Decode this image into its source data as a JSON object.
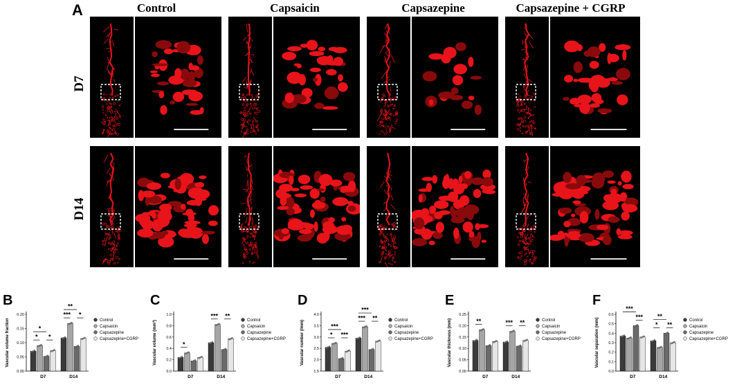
{
  "panel_a": {
    "letter": "A",
    "columns": [
      "Control",
      "Capsaicin",
      "Capsazepine",
      "Capsazepine + CGRP"
    ],
    "rows": [
      "D7",
      "D14"
    ]
  },
  "colors": {
    "vessel": "#e8141a",
    "vessel_dark": "#8a0a0c",
    "background": "#000000",
    "bar_control": "#3a3a3a",
    "bar_capsaicin": "#a6a6a6",
    "bar_capsazepine": "#6a6a6a",
    "bar_capsazepine_cgrp": "#e6e6e6"
  },
  "legend": [
    "Control",
    "Capsaicin",
    "Capsazepine",
    "Capsazepine+CGRP"
  ],
  "chart_data": [
    {
      "panel": "B",
      "type": "bar",
      "categories": [
        "D7",
        "D14"
      ],
      "ylabel": "Vascular volume fraction",
      "ylim": [
        0,
        0.2
      ],
      "yticks": [
        "0.00",
        "0.05",
        "0.10",
        "0.15",
        "0.20"
      ],
      "ytick_values": [
        0,
        0.05,
        0.1,
        0.15,
        0.2
      ],
      "series": [
        {
          "name": "Control",
          "values": [
            0.07,
            0.117
          ]
        },
        {
          "name": "Capsaicin",
          "values": [
            0.09,
            0.168
          ]
        },
        {
          "name": "Capsazepine",
          "values": [
            0.052,
            0.087
          ]
        },
        {
          "name": "Capsazepine+CGRP",
          "values": [
            0.072,
            0.115
          ]
        }
      ],
      "significance": [
        {
          "group": 0,
          "from": 0,
          "to": 2,
          "level": 1,
          "label": "*"
        },
        {
          "group": 0,
          "from": 0,
          "to": 1,
          "level": 0,
          "label": "*"
        },
        {
          "group": 0,
          "from": 2,
          "to": 3,
          "level": 0,
          "label": "*"
        },
        {
          "group": 1,
          "from": 0,
          "to": 2,
          "level": 1,
          "label": "**"
        },
        {
          "group": 1,
          "from": 0,
          "to": 1,
          "level": 0,
          "label": "***"
        },
        {
          "group": 1,
          "from": 2,
          "to": 3,
          "level": 0,
          "label": "*"
        }
      ]
    },
    {
      "panel": "C",
      "type": "bar",
      "categories": [
        "D7",
        "D14"
      ],
      "ylabel": "Vascular volume (mm³)",
      "ylim": [
        0,
        1.0
      ],
      "yticks": [
        "0.0",
        "0.2",
        "0.4",
        "0.6",
        "0.8",
        "1.0"
      ],
      "ytick_values": [
        0,
        0.2,
        0.4,
        0.6,
        0.8,
        1.0
      ],
      "series": [
        {
          "name": "Control",
          "values": [
            0.24,
            0.5
          ]
        },
        {
          "name": "Capsaicin",
          "values": [
            0.32,
            0.82
          ]
        },
        {
          "name": "Capsazepine",
          "values": [
            0.18,
            0.38
          ]
        },
        {
          "name": "Capsazepine+CGRP",
          "values": [
            0.24,
            0.57
          ]
        }
      ],
      "significance": [
        {
          "group": 0,
          "from": 0,
          "to": 1,
          "level": 0,
          "label": "*"
        },
        {
          "group": 1,
          "from": 0,
          "to": 1,
          "level": 0,
          "label": "***"
        },
        {
          "group": 1,
          "from": 2,
          "to": 3,
          "level": 0,
          "label": "**"
        }
      ]
    },
    {
      "panel": "D",
      "type": "bar",
      "categories": [
        "D7",
        "D14"
      ],
      "ylabel": "Vascular number (/mm)",
      "ylim": [
        1.5,
        4.0
      ],
      "yticks": [
        "1.5",
        "2.0",
        "2.5",
        "3.0",
        "3.5",
        "4.0"
      ],
      "ytick_values": [
        1.5,
        2.0,
        2.5,
        3.0,
        3.5,
        4.0
      ],
      "series": [
        {
          "name": "Control",
          "values": [
            2.55,
            2.95
          ]
        },
        {
          "name": "Capsaicin",
          "values": [
            2.72,
            3.45
          ]
        },
        {
          "name": "Capsazepine",
          "values": [
            2.05,
            2.45
          ]
        },
        {
          "name": "Capsazepine+CGRP",
          "values": [
            2.38,
            2.82
          ]
        }
      ],
      "significance": [
        {
          "group": 0,
          "from": 0,
          "to": 2,
          "level": 1,
          "label": "***"
        },
        {
          "group": 0,
          "from": 0,
          "to": 1,
          "level": 0,
          "label": "*"
        },
        {
          "group": 0,
          "from": 2,
          "to": 3,
          "level": 0,
          "label": "***"
        },
        {
          "group": 1,
          "from": 0,
          "to": 2,
          "level": 1,
          "label": "***"
        },
        {
          "group": 1,
          "from": 0,
          "to": 1,
          "level": 0,
          "label": "***"
        },
        {
          "group": 1,
          "from": 2,
          "to": 3,
          "level": 0,
          "label": "**"
        }
      ]
    },
    {
      "panel": "E",
      "type": "bar",
      "categories": [
        "D7",
        "D14"
      ],
      "ylabel": "Vascular thickness (mm)",
      "ylim": [
        0,
        0.25
      ],
      "yticks": [
        "0.00",
        "0.05",
        "0.10",
        "0.15",
        "0.20",
        "0.25"
      ],
      "ytick_values": [
        0,
        0.05,
        0.1,
        0.15,
        0.2,
        0.25
      ],
      "series": [
        {
          "name": "Control",
          "values": [
            0.135,
            0.128
          ]
        },
        {
          "name": "Capsaicin",
          "values": [
            0.182,
            0.175
          ]
        },
        {
          "name": "Capsazepine",
          "values": [
            0.112,
            0.11
          ]
        },
        {
          "name": "Capsazepine+CGRP",
          "values": [
            0.13,
            0.135
          ]
        }
      ],
      "significance": [
        {
          "group": 0,
          "from": 0,
          "to": 1,
          "level": 0,
          "label": "**"
        },
        {
          "group": 1,
          "from": 0,
          "to": 1,
          "level": 0,
          "label": "***"
        },
        {
          "group": 1,
          "from": 2,
          "to": 3,
          "level": 0,
          "label": "**"
        }
      ]
    },
    {
      "panel": "F",
      "type": "bar",
      "categories": [
        "D7",
        "D14"
      ],
      "ylabel": "Vascular separation (mm)",
      "ylim": [
        0,
        0.6
      ],
      "yticks": [
        "0.0",
        "0.1",
        "0.2",
        "0.3",
        "0.4",
        "0.5",
        "0.6"
      ],
      "ytick_values": [
        0,
        0.1,
        0.2,
        0.3,
        0.4,
        0.5,
        0.6
      ],
      "series": [
        {
          "name": "Control",
          "values": [
            0.37,
            0.32
          ]
        },
        {
          "name": "Capsaicin",
          "values": [
            0.35,
            0.25
          ]
        },
        {
          "name": "Capsazepine",
          "values": [
            0.48,
            0.4
          ]
        },
        {
          "name": "Capsazepine+CGRP",
          "values": [
            0.36,
            0.3
          ]
        }
      ],
      "significance": [
        {
          "group": 0,
          "from": 0,
          "to": 2,
          "level": 1,
          "label": "***"
        },
        {
          "group": 0,
          "from": 2,
          "to": 3,
          "level": 0,
          "label": "***"
        },
        {
          "group": 1,
          "from": 0,
          "to": 2,
          "level": 1,
          "label": "**"
        },
        {
          "group": 1,
          "from": 0,
          "to": 1,
          "level": 0,
          "label": "*"
        },
        {
          "group": 1,
          "from": 2,
          "to": 3,
          "level": 0,
          "label": "**"
        }
      ]
    }
  ]
}
